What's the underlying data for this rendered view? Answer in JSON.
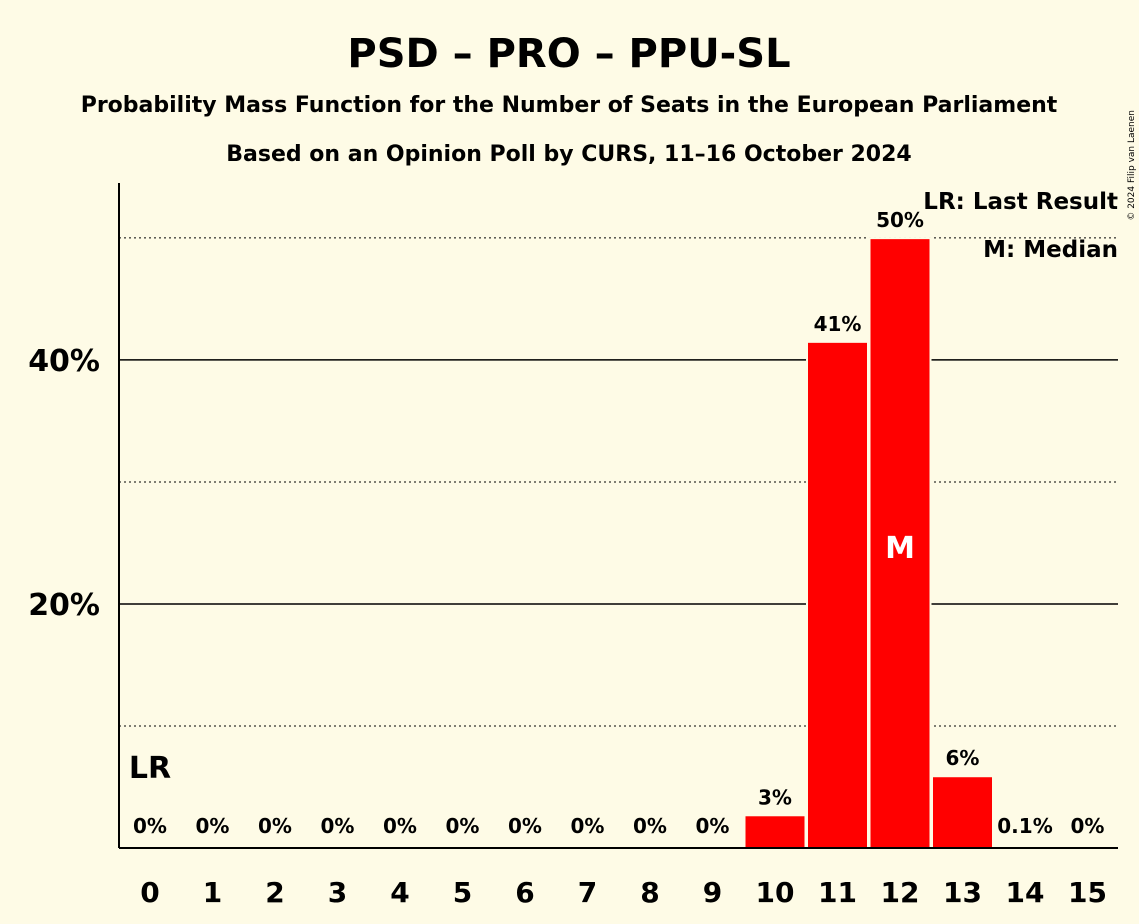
{
  "chart_data": {
    "type": "bar",
    "title": "PSD – PRO – PPU-SL",
    "subtitle": "Probability Mass Function for the Number of Seats in the European Parliament",
    "subtitle2": "Based on an Opinion Poll by CURS, 11–16 October 2024",
    "categories": [
      "0",
      "1",
      "2",
      "3",
      "4",
      "5",
      "6",
      "7",
      "8",
      "9",
      "10",
      "11",
      "12",
      "13",
      "14",
      "15"
    ],
    "values": [
      0,
      0,
      0,
      0,
      0,
      0,
      0,
      0,
      0,
      0,
      2.6,
      41.4,
      49.9,
      5.8,
      0.1,
      0
    ],
    "value_labels": [
      "0%",
      "0%",
      "0%",
      "0%",
      "0%",
      "0%",
      "0%",
      "0%",
      "0%",
      "0%",
      "3%",
      "41%",
      "50%",
      "6%",
      "0.1%",
      "0%"
    ],
    "ylim": [
      0,
      54.5
    ],
    "yticks": [
      20,
      40
    ],
    "ytick_labels": [
      "20%",
      "40%"
    ],
    "minor_gridlines": [
      10,
      30,
      50
    ],
    "bar_color": "#ff0000",
    "last_result_index": 0,
    "last_result_mark": "LR",
    "median_index": 12,
    "median_mark": "M",
    "legend": [
      "LR: Last Result",
      "M: Median"
    ],
    "legend_position": "top-right",
    "copyright": "© 2024 Filip van Laenen"
  }
}
